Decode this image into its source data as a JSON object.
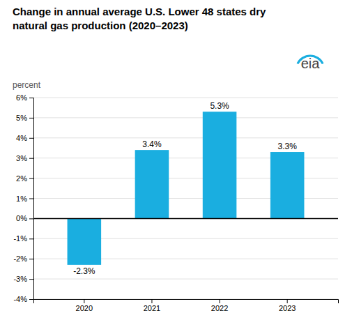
{
  "chart_data": {
    "type": "bar",
    "title": "Change in annual average U.S. Lower 48 states dry\nnatural gas production (2020–2023)",
    "ylabel": "percent",
    "annotations": [
      "eia"
    ],
    "categories": [
      "2020",
      "2021",
      "2022",
      "2023"
    ],
    "values": [
      -2.3,
      3.4,
      5.3,
      3.3
    ],
    "value_labels": [
      "-2.3%",
      "3.4%",
      "5.3%",
      "3.3%"
    ],
    "color": "#1aaee0",
    "ylim": [
      -4,
      6
    ],
    "yticks": [
      {
        "value": -4,
        "label": "-4%"
      },
      {
        "value": -3,
        "label": "-3%"
      },
      {
        "value": -2,
        "label": "-2%"
      },
      {
        "value": -1,
        "label": "-1%"
      },
      {
        "value": 0,
        "label": "0%"
      },
      {
        "value": 1,
        "label": "1%"
      },
      {
        "value": 2,
        "label": "2%"
      },
      {
        "value": 3,
        "label": "3%"
      },
      {
        "value": 4,
        "label": "4%"
      },
      {
        "value": 5,
        "label": "5%"
      },
      {
        "value": 6,
        "label": "6%"
      }
    ],
    "grid": true,
    "data_labels": true
  }
}
